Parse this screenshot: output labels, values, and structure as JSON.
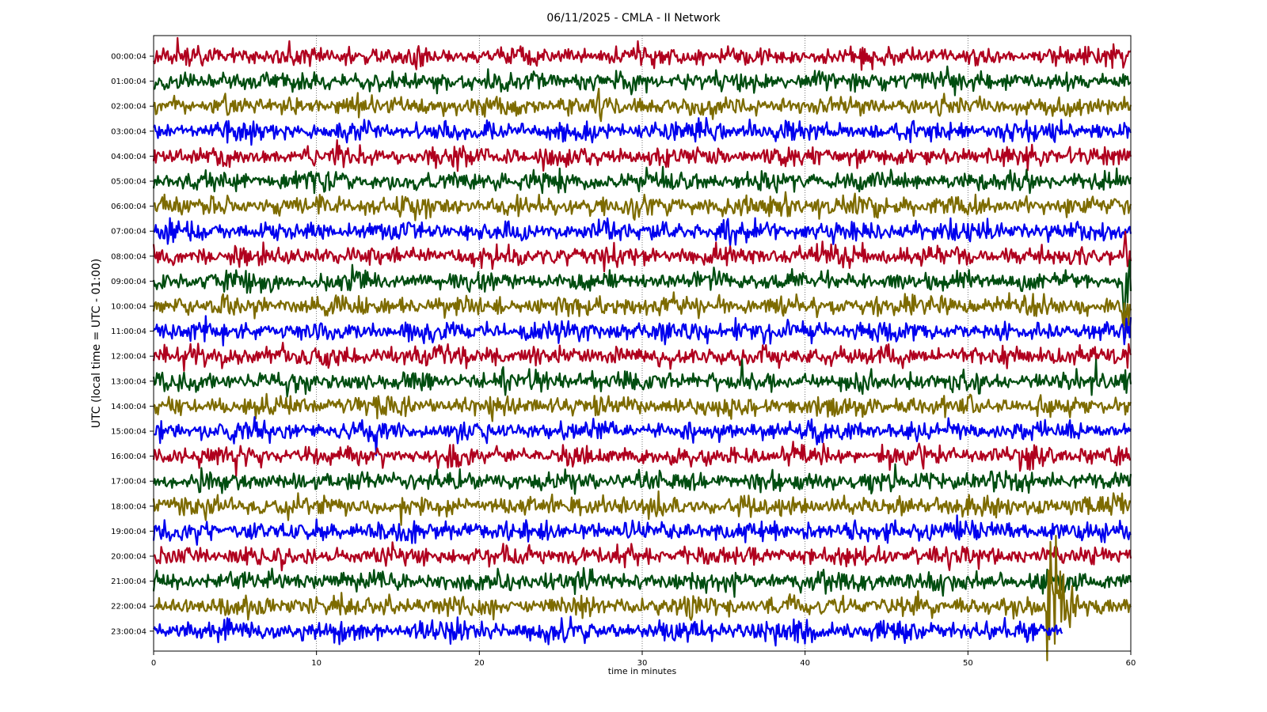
{
  "chart_data": {
    "type": "line",
    "title": "06/11/2025 - CMLA - II Network",
    "xlabel": "time in minutes",
    "ylabel": "UTC (local time = UTC - 01:00)",
    "xlim": [
      0,
      60
    ],
    "x_ticks": [
      "0",
      "10",
      "20",
      "30",
      "40",
      "50",
      "60"
    ],
    "grid": "vertical dotted",
    "row_labels": [
      "00:00:04",
      "01:00:04",
      "02:00:04",
      "03:00:04",
      "04:00:04",
      "05:00:04",
      "06:00:04",
      "07:00:04",
      "08:00:04",
      "09:00:04",
      "10:00:04",
      "11:00:04",
      "12:00:04",
      "13:00:04",
      "14:00:04",
      "15:00:04",
      "16:00:04",
      "17:00:04",
      "18:00:04",
      "19:00:04",
      "20:00:04",
      "21:00:04",
      "22:00:04",
      "23:00:04"
    ],
    "trace_colors": [
      "#b0001e",
      "#004d10",
      "#7d6b00",
      "#0000ee"
    ],
    "traces": [
      {
        "hour": "00:00:04",
        "events": []
      },
      {
        "hour": "01:00:04",
        "events": []
      },
      {
        "hour": "02:00:04",
        "events": []
      },
      {
        "hour": "03:00:04",
        "events": []
      },
      {
        "hour": "04:00:04",
        "events": []
      },
      {
        "hour": "05:00:04",
        "events": [
          {
            "t": 30.2,
            "amp": 2.0
          }
        ]
      },
      {
        "hour": "06:00:04",
        "events": [
          {
            "t": 38.8,
            "amp": 2.2
          }
        ]
      },
      {
        "hour": "07:00:04",
        "events": []
      },
      {
        "hour": "08:00:04",
        "events": [
          {
            "t": 59.6,
            "amp": 3.5
          }
        ]
      },
      {
        "hour": "09:00:04",
        "events": [
          {
            "t": 59.6,
            "amp": 6.0
          }
        ]
      },
      {
        "hour": "10:00:04",
        "events": [
          {
            "t": 21.1,
            "amp": 1.8
          },
          {
            "t": 34.5,
            "amp": 1.6
          },
          {
            "t": 59.6,
            "amp": 5.0
          }
        ]
      },
      {
        "hour": "11:00:04",
        "events": [
          {
            "t": 35.7,
            "amp": 1.8
          },
          {
            "t": 48.0,
            "amp": 1.4
          },
          {
            "t": 59.6,
            "amp": 4.0
          }
        ]
      },
      {
        "hour": "12:00:04",
        "events": [
          {
            "t": 19.0,
            "amp": 1.8
          },
          {
            "t": 37.8,
            "amp": 1.4
          },
          {
            "t": 59.6,
            "amp": 4.0
          }
        ]
      },
      {
        "hour": "13:00:04",
        "events": [
          {
            "t": 44.3,
            "amp": 1.6
          },
          {
            "t": 59.6,
            "amp": 3.0
          }
        ]
      },
      {
        "hour": "14:00:04",
        "events": [
          {
            "t": 59.6,
            "amp": 2.0
          }
        ]
      },
      {
        "hour": "15:00:04",
        "events": [
          {
            "t": 10.7,
            "amp": 1.8
          }
        ]
      },
      {
        "hour": "16:00:04",
        "events": [
          {
            "t": 22.5,
            "amp": 2.0
          },
          {
            "t": 50.7,
            "amp": 1.3
          }
        ]
      },
      {
        "hour": "17:00:04",
        "events": [
          {
            "t": 18.3,
            "amp": 1.3
          }
        ]
      },
      {
        "hour": "18:00:04",
        "events": [
          {
            "t": 48.0,
            "amp": 1.6
          }
        ]
      },
      {
        "hour": "19:00:04",
        "events": [
          {
            "t": 14.3,
            "amp": 1.4
          },
          {
            "t": 16.3,
            "amp": 1.3
          }
        ]
      },
      {
        "hour": "20:00:04",
        "events": []
      },
      {
        "hour": "21:00:04",
        "events": []
      },
      {
        "hour": "22:00:04",
        "events": [
          {
            "t": 54.9,
            "amp": 12.0
          }
        ]
      },
      {
        "hour": "23:00:04",
        "events": [],
        "end_minute": 55.8
      }
    ]
  }
}
